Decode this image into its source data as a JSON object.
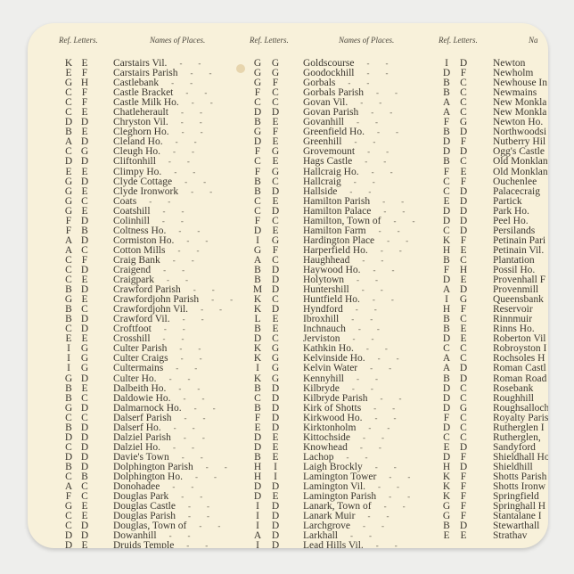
{
  "headers": [
    "Ref. Letters.",
    "Names of Places.",
    "Ref. Letters.",
    "Names of Places.",
    "Ref. Letters.",
    "Na"
  ],
  "columns": [
    {
      "rows": [
        [
          "K",
          "E",
          "Carstairs Vil."
        ],
        [
          "E",
          "F",
          "Carstairs Parish"
        ],
        [
          "G",
          "H",
          "Castlebank"
        ],
        [
          "C",
          "F",
          "Castle Bracket"
        ],
        [
          "C",
          "F",
          "Castle Milk Ho."
        ],
        [
          "C",
          "E",
          "Chatleherault"
        ],
        [
          "D",
          "D",
          "Chryston Vil."
        ],
        [
          "B",
          "E",
          "Cleghorn Ho."
        ],
        [
          "A",
          "D",
          "Cleland Ho."
        ],
        [
          "C",
          "G",
          "Cleugh Ho."
        ],
        [
          "D",
          "D",
          "Cliftonhill"
        ],
        [
          "E",
          "E",
          "Climpy Ho."
        ],
        [
          "G",
          "D",
          "Clyde Cottage"
        ],
        [
          "G",
          "E",
          "Clyde Ironwork"
        ],
        [
          "G",
          "C",
          "Coats"
        ],
        [
          "G",
          "E",
          "Coatshill"
        ],
        [
          "F",
          "D",
          "Colinhill"
        ],
        [
          "F",
          "B",
          "Coltness Ho."
        ],
        [
          "A",
          "D",
          "Cormiston Ho."
        ],
        [
          "A",
          "C",
          "Cotton Mills"
        ],
        [
          "C",
          "F",
          "Craig Bank"
        ],
        [
          "C",
          "D",
          "Craigend"
        ],
        [
          "C",
          "E",
          "Craigpark"
        ],
        [
          "B",
          "D",
          "Crawford Parish"
        ],
        [
          "G",
          "E",
          "Crawfordjohn Parish"
        ],
        [
          "B",
          "C",
          "Crawfordjohn Vil."
        ],
        [
          "B",
          "D",
          "Crawford Vil."
        ],
        [
          "C",
          "D",
          "Croftfoot"
        ],
        [
          "E",
          "E",
          "Crosshill"
        ],
        [
          "I",
          "G",
          "Culter Parish"
        ],
        [
          "I",
          "G",
          "Culter Craigs"
        ],
        [
          "I",
          "G",
          "Cultermains"
        ],
        [
          "G",
          "D",
          "Culter Ho."
        ],
        [
          "B",
          "E",
          "Dalbeith Ho."
        ],
        [
          "B",
          "C",
          "Daldowie Ho."
        ],
        [
          "G",
          "D",
          "Dalmarnock Ho."
        ],
        [
          "C",
          "C",
          "Dalserf Parish"
        ],
        [
          "B",
          "D",
          "Dalserf Ho."
        ],
        [
          "D",
          "D",
          "Dalziel Parish"
        ],
        [
          "C",
          "D",
          "Dalziel Ho."
        ],
        [
          "D",
          "D",
          "Davie's Town"
        ],
        [
          "B",
          "D",
          "Dolphington Parish"
        ],
        [
          "C",
          "B",
          "Dolphington Ho."
        ],
        [
          "A",
          "C",
          "Donohadee"
        ],
        [
          "F",
          "C",
          "Douglas Park"
        ],
        [
          "G",
          "E",
          "Douglas Castle"
        ],
        [
          "C",
          "E",
          "Douglas Parish"
        ],
        [
          "C",
          "D",
          "Douglas, Town of"
        ],
        [
          "D",
          "D",
          "Dowanhill"
        ],
        [
          "D",
          "E",
          "Druids Temple"
        ]
      ]
    },
    {
      "rows": [
        [
          "G",
          "G",
          "Goldscourse"
        ],
        [
          "G",
          "G",
          "Goodockhill"
        ],
        [
          "G",
          "F",
          "Gorbals"
        ],
        [
          "F",
          "C",
          "Gorbals Parish"
        ],
        [
          "C",
          "C",
          "Govan Vil."
        ],
        [
          "D",
          "D",
          "Govan Parish"
        ],
        [
          "B",
          "E",
          "Govanhill"
        ],
        [
          "G",
          "F",
          "Greenfield Ho."
        ],
        [
          "D",
          "E",
          "Greenhill"
        ],
        [
          "F",
          "G",
          "Grovemount"
        ],
        [
          "C",
          "E",
          "Hags Castle"
        ],
        [
          "F",
          "G",
          "Hallcraig Ho."
        ],
        [
          "B",
          "C",
          "Hallcraig"
        ],
        [
          "B",
          "D",
          "Hallside"
        ],
        [
          "C",
          "E",
          "Hamilton Parish"
        ],
        [
          "C",
          "D",
          "Hamilton Palace"
        ],
        [
          "F",
          "C",
          "Hamilton, Town of"
        ],
        [
          "D",
          "E",
          "Hamilton Farm"
        ],
        [
          "I",
          "G",
          "Hardington Place"
        ],
        [
          "G",
          "F",
          "Harperfield Ho."
        ],
        [
          "A",
          "C",
          "Haughhead"
        ],
        [
          "B",
          "D",
          "Haywood Ho."
        ],
        [
          "B",
          "D",
          "Holytown"
        ],
        [
          "M",
          "D",
          "Huntershill"
        ],
        [
          "K",
          "C",
          "Huntfield Ho."
        ],
        [
          "K",
          "D",
          "Hyndford"
        ],
        [
          "L",
          "E",
          "Ibroxhill"
        ],
        [
          "B",
          "E",
          "Inchnauch"
        ],
        [
          "D",
          "C",
          "Jerviston"
        ],
        [
          "K",
          "G",
          "Kathkin Ho."
        ],
        [
          "K",
          "G",
          "Kelvinside Ho."
        ],
        [
          "I",
          "G",
          "Kelvin Water"
        ],
        [
          "K",
          "G",
          "Kennyhill"
        ],
        [
          "B",
          "D",
          "Kilbryde"
        ],
        [
          "C",
          "D",
          "Kilbryde Parish"
        ],
        [
          "B",
          "D",
          "Kirk of Shotts"
        ],
        [
          "F",
          "D",
          "Kirkwood Ho."
        ],
        [
          "E",
          "D",
          "Kirktonholm"
        ],
        [
          "D",
          "E",
          "Kittochside"
        ],
        [
          "D",
          "E",
          "Knowhead"
        ],
        [
          "B",
          "E",
          "Lachop"
        ],
        [
          "H",
          "I",
          "Laigh Brockly"
        ],
        [
          "H",
          "I",
          "Lamington Tower"
        ],
        [
          "D",
          "D",
          "Lamington Vil."
        ],
        [
          "D",
          "E",
          "Lamington Parish"
        ],
        [
          "I",
          "D",
          "Lanark, Town of"
        ],
        [
          "I",
          "D",
          "Lanark Muir"
        ],
        [
          "I",
          "D",
          "Larchgrove"
        ],
        [
          "A",
          "D",
          "Larkhall"
        ],
        [
          "I",
          "D",
          "Lead Hills Vil."
        ]
      ]
    },
    {
      "rows": [
        [
          "I",
          "D",
          "Newton"
        ],
        [
          "D",
          "F",
          "Newholm"
        ],
        [
          "B",
          "C",
          "Newhouse In"
        ],
        [
          "B",
          "C",
          "Newmains"
        ],
        [
          "A",
          "C",
          "New Monkla"
        ],
        [
          "A",
          "C",
          "New Monkla"
        ],
        [
          "F",
          "G",
          "Newton Ho."
        ],
        [
          "B",
          "D",
          "Northwoodsi"
        ],
        [
          "D",
          "F",
          "Nutberry Hil"
        ],
        [
          "D",
          "D",
          "Ogg's Castle"
        ],
        [
          "B",
          "C",
          "Old Monklan"
        ],
        [
          "F",
          "E",
          "Old Monklan"
        ],
        [
          "C",
          "F",
          "Ouchenlee"
        ],
        [
          "C",
          "D",
          "Palacecraig"
        ],
        [
          "E",
          "D",
          "Partick"
        ],
        [
          "D",
          "D",
          "Park Ho."
        ],
        [
          "D",
          "D",
          "Peel Ho."
        ],
        [
          "C",
          "D",
          "Persilands"
        ],
        [
          "K",
          "F",
          "Petinain Pari"
        ],
        [
          "H",
          "E",
          "Petinain Vil."
        ],
        [
          "B",
          "C",
          "Plantation"
        ],
        [
          "F",
          "H",
          "Possil Ho."
        ],
        [
          "D",
          "E",
          "Provenhall F"
        ],
        [
          "A",
          "D",
          "Provenmill"
        ],
        [
          "I",
          "G",
          "Queensbank"
        ],
        [
          "H",
          "F",
          "Reservoir"
        ],
        [
          "B",
          "C",
          "Rinnmuir"
        ],
        [
          "B",
          "E",
          "Rinns Ho."
        ],
        [
          "D",
          "E",
          "Roberton Vil"
        ],
        [
          "C",
          "C",
          "Robroyston I"
        ],
        [
          "A",
          "C",
          "Rochsoles H"
        ],
        [
          "A",
          "D",
          "Roman Castl"
        ],
        [
          "B",
          "D",
          "Roman Road"
        ],
        [
          "D",
          "C",
          "Rosebank"
        ],
        [
          "D",
          "C",
          "Roughhill"
        ],
        [
          "D",
          "G",
          "Roughsalloch"
        ],
        [
          "F",
          "C",
          "Royalty Paris"
        ],
        [
          "D",
          "C",
          "Rutherglen I"
        ],
        [
          "C",
          "C",
          "Rutherglen,"
        ],
        [
          "E",
          "D",
          "Sandyford"
        ],
        [
          "D",
          "F",
          "Shieldhall Ho"
        ],
        [
          "H",
          "D",
          "Shieldhill"
        ],
        [
          "K",
          "F",
          "Shotts Parish"
        ],
        [
          "K",
          "F",
          "Shotts Ironw"
        ],
        [
          "K",
          "F",
          "Springfield"
        ],
        [
          "G",
          "F",
          "Springhall H"
        ],
        [
          "G",
          "F",
          "Stantalane I"
        ],
        [
          "B",
          "D",
          "Stewarthall"
        ],
        [
          "E",
          "E",
          "Strathav"
        ]
      ]
    }
  ]
}
